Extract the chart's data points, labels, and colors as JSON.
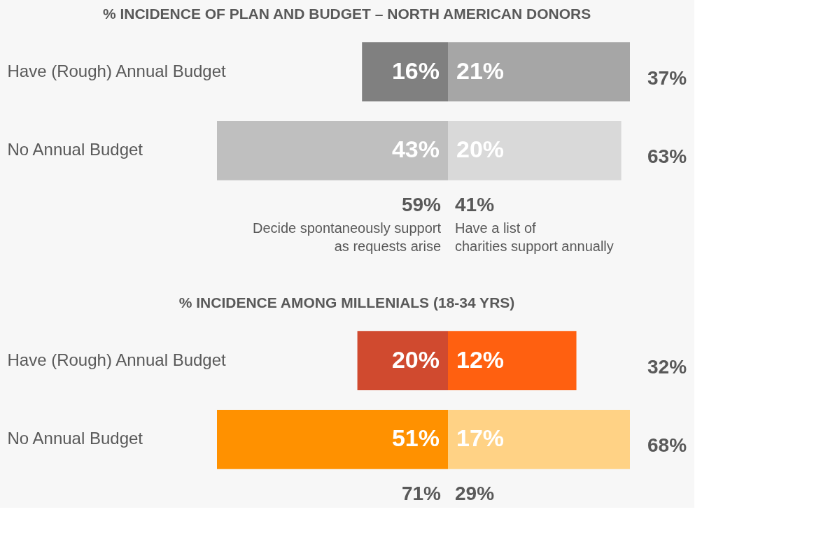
{
  "chart_data": [
    {
      "type": "bar",
      "orientation": "horizontal",
      "title": "% INCIDENCE OF PLAN AND BUDGET – NORTH AMERICAN DONORS",
      "categories": [
        "Have (Rough) Annual Budget",
        "No Annual Budget"
      ],
      "xlim": [
        43,
        0
      ],
      "tick_labels": "y",
      "series": [
        {
          "name": "Decide spontaneously support as requests arise",
          "colors": [
            "#808080",
            "#bfbfbf"
          ],
          "values": [
            16,
            43
          ],
          "value_labels": [
            "16%",
            "43%"
          ]
        }
      ],
      "annotations": [
        "59%"
      ]
    },
    {
      "type": "bar",
      "orientation": "horizontal",
      "categories": [
        null,
        null
      ],
      "xlim": [
        0,
        21
      ],
      "tick_labels": false,
      "series": [
        {
          "name": "Have a list of charities support annually",
          "colors": [
            "#a6a6a6",
            "#d9d9d9"
          ],
          "values": [
            21,
            20
          ],
          "value_labels": [
            "21%",
            "20%"
          ]
        }
      ],
      "annotations": [
        "41%",
        "37%",
        "63%"
      ]
    },
    {
      "type": "bar",
      "orientation": "horizontal",
      "title": "% INCIDENCE AMONG MILLENIALS (18-34 YRS)",
      "categories": [
        "Have (Rough) Annual Budget",
        "No Annual Budget"
      ],
      "xlim": [
        51,
        0
      ],
      "tick_labels": "y",
      "series": [
        {
          "colors": [
            "#d04a2f",
            "#ff9100"
          ],
          "values": [
            20,
            51
          ],
          "value_labels": [
            "20%",
            "51%"
          ]
        }
      ],
      "annotations": [
        "71%"
      ]
    },
    {
      "type": "bar",
      "orientation": "horizontal",
      "categories": [
        null,
        null
      ],
      "xlim": [
        0,
        17
      ],
      "tick_labels": false,
      "series": [
        {
          "colors": [
            "#ff6010",
            "#ffd285"
          ],
          "values": [
            12,
            17
          ],
          "value_labels": [
            "12%",
            "17%"
          ]
        }
      ],
      "annotations": [
        "29%",
        "32%",
        "68%"
      ]
    }
  ]
}
